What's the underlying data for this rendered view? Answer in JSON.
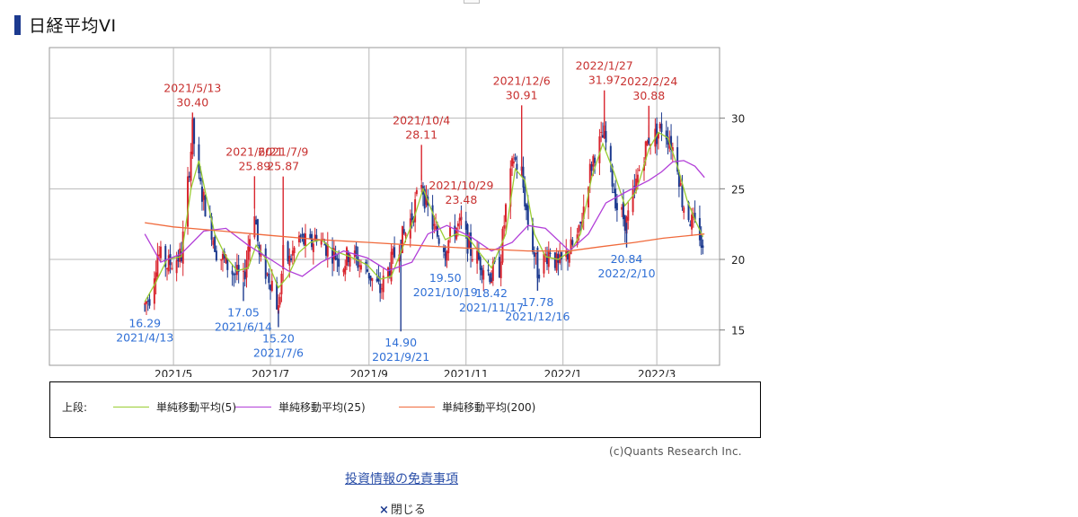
{
  "header": {
    "title": "日経平均VI"
  },
  "legend": {
    "prefix": "上段:",
    "items": [
      {
        "label": "単純移動平均(5)",
        "color": "#9acd32"
      },
      {
        "label": "単純移動平均(25)",
        "color": "#b23fd8"
      },
      {
        "label": "単純移動平均(200)",
        "color": "#f06a3c"
      }
    ]
  },
  "footer": {
    "copyright": "(c)Quants Research Inc.",
    "disclaimer_link": "投資情報の免責事項",
    "close_icon": "×",
    "close_label": "閉じる"
  },
  "chart_data": {
    "type": "candlestick",
    "title": "日経平均VI",
    "ylim": [
      12.5,
      35
    ],
    "yticks": [
      15,
      20,
      25,
      30
    ],
    "xlabels": [
      "2021/5",
      "2021/7",
      "2021/9",
      "2021/11",
      "2022/1",
      "2022/3"
    ],
    "grid": true,
    "colors": {
      "up": "#d9252e",
      "down": "#1c3a8f",
      "high_label": "#c8302f",
      "low_label": "#2f6fd6"
    },
    "close_series": [
      [
        "2021/4/13",
        16.8
      ],
      [
        "2021/4/16",
        17.4
      ],
      [
        "2021/4/21",
        20.4
      ],
      [
        "2021/4/27",
        19.6
      ],
      [
        "2021/5/6",
        20.3
      ],
      [
        "2021/5/12",
        27.8
      ],
      [
        "2021/5/13",
        29.2
      ],
      [
        "2021/5/17",
        25.5
      ],
      [
        "2021/5/20",
        24.2
      ],
      [
        "2021/5/25",
        22.1
      ],
      [
        "2021/5/28",
        20.6
      ],
      [
        "2021/6/3",
        19.7
      ],
      [
        "2021/6/8",
        19.0
      ],
      [
        "2021/6/11",
        18.8
      ],
      [
        "2021/6/14",
        18.4
      ],
      [
        "2021/6/17",
        21.0
      ],
      [
        "2021/6/21",
        23.6
      ],
      [
        "2021/6/24",
        20.1
      ],
      [
        "2021/6/29",
        18.9
      ],
      [
        "2021/7/2",
        18.4
      ],
      [
        "2021/7/6",
        16.4
      ],
      [
        "2021/7/9",
        20.3
      ],
      [
        "2021/7/13",
        19.9
      ],
      [
        "2021/7/19",
        21.5
      ],
      [
        "2021/7/26",
        20.9
      ],
      [
        "2021/7/30",
        21.8
      ],
      [
        "2021/8/5",
        20.9
      ],
      [
        "2021/8/10",
        20.4
      ],
      [
        "2021/8/16",
        19.7
      ],
      [
        "2021/8/20",
        20.6
      ],
      [
        "2021/8/25",
        19.8
      ],
      [
        "2021/8/31",
        19.2
      ],
      [
        "2021/9/3",
        18.6
      ],
      [
        "2021/9/8",
        17.8
      ],
      [
        "2021/9/14",
        19.5
      ],
      [
        "2021/9/21",
        21.4
      ],
      [
        "2021/9/24",
        21.9
      ],
      [
        "2021/9/29",
        23.4
      ],
      [
        "2021/10/4",
        25.6
      ],
      [
        "2021/10/7",
        23.8
      ],
      [
        "2021/10/12",
        22.1
      ],
      [
        "2021/10/15",
        21.5
      ],
      [
        "2021/10/19",
        20.9
      ],
      [
        "2021/10/25",
        22.2
      ],
      [
        "2021/10/29",
        22.4
      ],
      [
        "2021/11/4",
        20.6
      ],
      [
        "2021/11/10",
        19.8
      ],
      [
        "2021/11/16",
        19.0
      ],
      [
        "2021/11/22",
        19.4
      ],
      [
        "2021/11/26",
        23.6
      ],
      [
        "2021/12/1",
        27.2
      ],
      [
        "2021/12/6",
        25.9
      ],
      [
        "2021/12/10",
        22.6
      ],
      [
        "2021/12/16",
        19.2
      ],
      [
        "2021/12/21",
        20.2
      ],
      [
        "2021/12/24",
        20.8
      ],
      [
        "2021/12/29",
        19.4
      ],
      [
        "2022/1/5",
        20.6
      ],
      [
        "2022/1/11",
        21.7
      ],
      [
        "2022/1/17",
        25.8
      ],
      [
        "2022/1/21",
        27.6
      ],
      [
        "2022/1/27",
        28.8
      ],
      [
        "2022/2/1",
        25.6
      ],
      [
        "2022/2/4",
        23.7
      ],
      [
        "2022/2/10",
        22.6
      ],
      [
        "2022/2/15",
        24.8
      ],
      [
        "2022/2/18",
        26.4
      ],
      [
        "2022/2/24",
        28.6
      ],
      [
        "2022/3/1",
        28.8
      ],
      [
        "2022/3/4",
        29.4
      ],
      [
        "2022/3/9",
        28.6
      ],
      [
        "2022/3/14",
        26.8
      ],
      [
        "2022/3/17",
        24.2
      ],
      [
        "2022/3/23",
        22.6
      ],
      [
        "2022/3/28",
        21.8
      ],
      [
        "2022/3/30",
        20.4
      ]
    ],
    "highs": [
      {
        "date": "2021/5/13",
        "value": 30.4
      },
      {
        "date": "2021/6/21",
        "value": 25.89
      },
      {
        "date": "2021/7/9",
        "value": 25.87
      },
      {
        "date": "2021/10/4",
        "value": 28.11
      },
      {
        "date": "2021/10/29",
        "value": 23.48
      },
      {
        "date": "2021/12/6",
        "value": 30.91
      },
      {
        "date": "2022/1/27",
        "value": 31.97
      },
      {
        "date": "2022/2/24",
        "value": 30.88
      }
    ],
    "lows": [
      {
        "date": "2021/4/13",
        "value": 16.29
      },
      {
        "date": "2021/6/14",
        "value": 17.05
      },
      {
        "date": "2021/7/6",
        "value": 15.2
      },
      {
        "date": "2021/9/21",
        "value": 14.9
      },
      {
        "date": "2021/10/19",
        "value": 19.5
      },
      {
        "date": "2021/11/17",
        "value": 18.42
      },
      {
        "date": "2021/12/16",
        "value": 17.78
      },
      {
        "date": "2022/2/10",
        "value": 20.84
      }
    ],
    "high_labels": [
      [
        "2021/5/13",
        "30.40"
      ],
      [
        "2021/6/21",
        "25.89"
      ],
      [
        "2021/7/9",
        "25.87"
      ],
      [
        "2021/10/4",
        "28.11"
      ],
      [
        "2021/10/29",
        "23.48"
      ],
      [
        "2021/12/6",
        "30.91"
      ],
      [
        "2022/1/27",
        "31.97"
      ],
      [
        "2022/2/24",
        "30.88"
      ]
    ],
    "low_labels": [
      [
        "16.29",
        "2021/4/13"
      ],
      [
        "17.05",
        "2021/6/14"
      ],
      [
        "15.20",
        "2021/7/6"
      ],
      [
        "14.90",
        "2021/9/21"
      ],
      [
        "19.50",
        "2021/10/19"
      ],
      [
        "18.42",
        "2021/11/17"
      ],
      [
        "17.78",
        "2021/12/16"
      ],
      [
        "20.84",
        "2022/2/10"
      ]
    ],
    "series": [
      {
        "name": "単純移動平均(5)",
        "color": "#9acd32",
        "points": [
          [
            "2021/4/13",
            17.0
          ],
          [
            "2021/4/20",
            18.4
          ],
          [
            "2021/4/27",
            20.0
          ],
          [
            "2021/5/6",
            20.2
          ],
          [
            "2021/5/12",
            25.0
          ],
          [
            "2021/5/17",
            27.0
          ],
          [
            "2021/5/21",
            24.8
          ],
          [
            "2021/5/27",
            21.8
          ],
          [
            "2021/6/3",
            20.2
          ],
          [
            "2021/6/10",
            19.2
          ],
          [
            "2021/6/17",
            19.4
          ],
          [
            "2021/6/22",
            21.0
          ],
          [
            "2021/6/29",
            19.9
          ],
          [
            "2021/7/6",
            18.0
          ],
          [
            "2021/7/12",
            18.8
          ],
          [
            "2021/7/19",
            20.5
          ],
          [
            "2021/7/26",
            21.2
          ],
          [
            "2021/8/2",
            21.4
          ],
          [
            "2021/8/10",
            20.6
          ],
          [
            "2021/8/20",
            20.2
          ],
          [
            "2021/8/31",
            19.6
          ],
          [
            "2021/9/8",
            18.6
          ],
          [
            "2021/9/15",
            18.8
          ],
          [
            "2021/9/22",
            20.8
          ],
          [
            "2021/9/29",
            22.8
          ],
          [
            "2021/10/5",
            25.0
          ],
          [
            "2021/10/12",
            23.0
          ],
          [
            "2021/10/19",
            21.4
          ],
          [
            "2021/10/26",
            21.8
          ],
          [
            "2021/11/2",
            21.6
          ],
          [
            "2021/11/10",
            20.4
          ],
          [
            "2021/11/17",
            19.4
          ],
          [
            "2021/11/26",
            21.8
          ],
          [
            "2021/12/2",
            26.4
          ],
          [
            "2021/12/8",
            25.6
          ],
          [
            "2021/12/14",
            21.8
          ],
          [
            "2021/12/21",
            20.2
          ],
          [
            "2021/12/29",
            20.0
          ],
          [
            "2022/1/6",
            20.6
          ],
          [
            "2022/1/12",
            21.8
          ],
          [
            "2022/1/19",
            25.8
          ],
          [
            "2022/1/26",
            28.2
          ],
          [
            "2022/2/2",
            26.2
          ],
          [
            "2022/2/9",
            23.8
          ],
          [
            "2022/2/16",
            24.8
          ],
          [
            "2022/2/24",
            27.8
          ],
          [
            "2022/3/2",
            29.0
          ],
          [
            "2022/3/8",
            28.6
          ],
          [
            "2022/3/14",
            26.6
          ],
          [
            "2022/3/20",
            24.2
          ],
          [
            "2022/3/25",
            22.8
          ],
          [
            "2022/3/30",
            21.6
          ]
        ]
      },
      {
        "name": "単純移動平均(25)",
        "color": "#b23fd8",
        "points": [
          [
            "2021/4/13",
            21.8
          ],
          [
            "2021/4/23",
            19.8
          ],
          [
            "2021/5/6",
            20.4
          ],
          [
            "2021/5/20",
            22.0
          ],
          [
            "2021/6/3",
            22.2
          ],
          [
            "2021/6/17",
            21.0
          ],
          [
            "2021/7/1",
            20.0
          ],
          [
            "2021/7/12",
            19.2
          ],
          [
            "2021/7/21",
            18.8
          ],
          [
            "2021/8/2",
            19.8
          ],
          [
            "2021/8/16",
            20.6
          ],
          [
            "2021/8/31",
            20.1
          ],
          [
            "2021/9/13",
            19.2
          ],
          [
            "2021/9/28",
            19.8
          ],
          [
            "2021/10/8",
            21.8
          ],
          [
            "2021/10/20",
            22.4
          ],
          [
            "2021/11/4",
            21.6
          ],
          [
            "2021/11/17",
            20.6
          ],
          [
            "2021/11/30",
            21.2
          ],
          [
            "2021/12/10",
            22.4
          ],
          [
            "2021/12/21",
            22.2
          ],
          [
            "2022/1/5",
            20.6
          ],
          [
            "2022/1/17",
            21.8
          ],
          [
            "2022/1/28",
            24.0
          ],
          [
            "2022/2/10",
            24.8
          ],
          [
            "2022/2/24",
            25.6
          ],
          [
            "2022/3/4",
            26.2
          ],
          [
            "2022/3/11",
            26.9
          ],
          [
            "2022/3/18",
            27.0
          ],
          [
            "2022/3/25",
            26.6
          ],
          [
            "2022/3/31",
            25.8
          ]
        ]
      },
      {
        "name": "単純移動平均(200)",
        "color": "#f06a3c",
        "points": [
          [
            "2021/4/13",
            22.6
          ],
          [
            "2021/5/1",
            22.3
          ],
          [
            "2021/6/1",
            22.0
          ],
          [
            "2021/7/1",
            21.7
          ],
          [
            "2021/8/1",
            21.4
          ],
          [
            "2021/9/1",
            21.2
          ],
          [
            "2021/10/1",
            21.0
          ],
          [
            "2021/11/1",
            20.8
          ],
          [
            "2021/11/20",
            20.7
          ],
          [
            "2021/12/10",
            20.6
          ],
          [
            "2022/1/5",
            20.6
          ],
          [
            "2022/1/25",
            20.9
          ],
          [
            "2022/2/15",
            21.2
          ],
          [
            "2022/3/5",
            21.5
          ],
          [
            "2022/3/31",
            21.8
          ]
        ]
      }
    ]
  }
}
